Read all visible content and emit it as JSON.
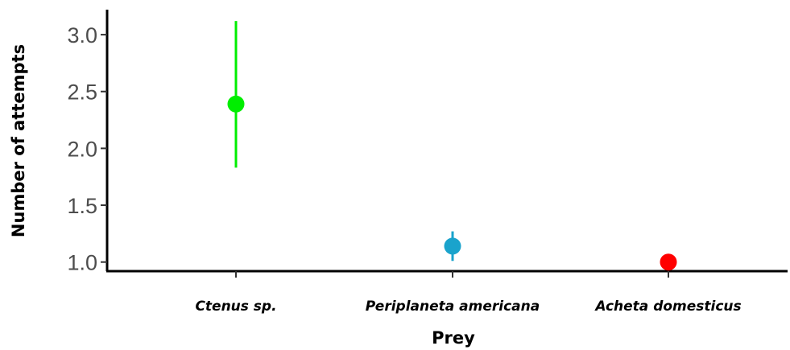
{
  "chart_data": {
    "type": "scatter",
    "xlabel": "Prey",
    "ylabel": "Number of attempts",
    "categories": [
      "Ctenus sp.",
      "Periplaneta americana",
      "Acheta domesticus"
    ],
    "points": [
      {
        "category": "Ctenus sp.",
        "value": 2.39,
        "lower": 1.83,
        "upper": 3.12,
        "color": "#00ee00"
      },
      {
        "category": "Periplaneta americana",
        "value": 1.14,
        "lower": 1.01,
        "upper": 1.27,
        "color": "#1aa3cc"
      },
      {
        "category": "Acheta domesticus",
        "value": 1.0,
        "lower": 1.0,
        "upper": 1.0,
        "color": "#ff0000"
      }
    ],
    "ylim": [
      0.92,
      3.22
    ],
    "yticks": [
      "1.0",
      "1.5",
      "2.0",
      "2.5",
      "3.0"
    ],
    "grid": false,
    "legend": "none"
  }
}
